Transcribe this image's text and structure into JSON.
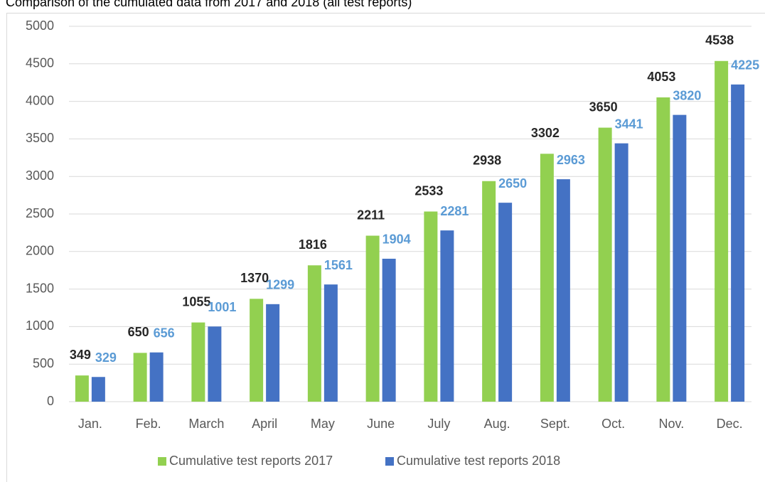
{
  "chart_data": {
    "type": "bar",
    "title": "Comparison of the cumulated data from 2017 and 2018 (all test reports)",
    "categories": [
      "Jan.",
      "Feb.",
      "March",
      "April",
      "May",
      "June",
      "July",
      "Aug.",
      "Sept.",
      "Oct.",
      "Nov.",
      "Dec."
    ],
    "series": [
      {
        "name": "Cumulative test reports 2017",
        "color": "#92d050",
        "label_color": "#262626",
        "values": [
          349,
          650,
          1055,
          1370,
          1816,
          2211,
          2533,
          2938,
          3302,
          3650,
          4053,
          4538
        ]
      },
      {
        "name": "Cumulative test reports 2018",
        "color": "#4472c4",
        "label_color": "#5b9bd5",
        "values": [
          329,
          656,
          1001,
          1299,
          1561,
          1904,
          2281,
          2650,
          2963,
          3441,
          3820,
          4225
        ]
      }
    ],
    "ylim": [
      0,
      5000
    ],
    "yticks": [
      0,
      500,
      1000,
      1500,
      2000,
      2500,
      3000,
      3500,
      4000,
      4500,
      5000
    ],
    "grid": true,
    "legend": "bottom"
  }
}
